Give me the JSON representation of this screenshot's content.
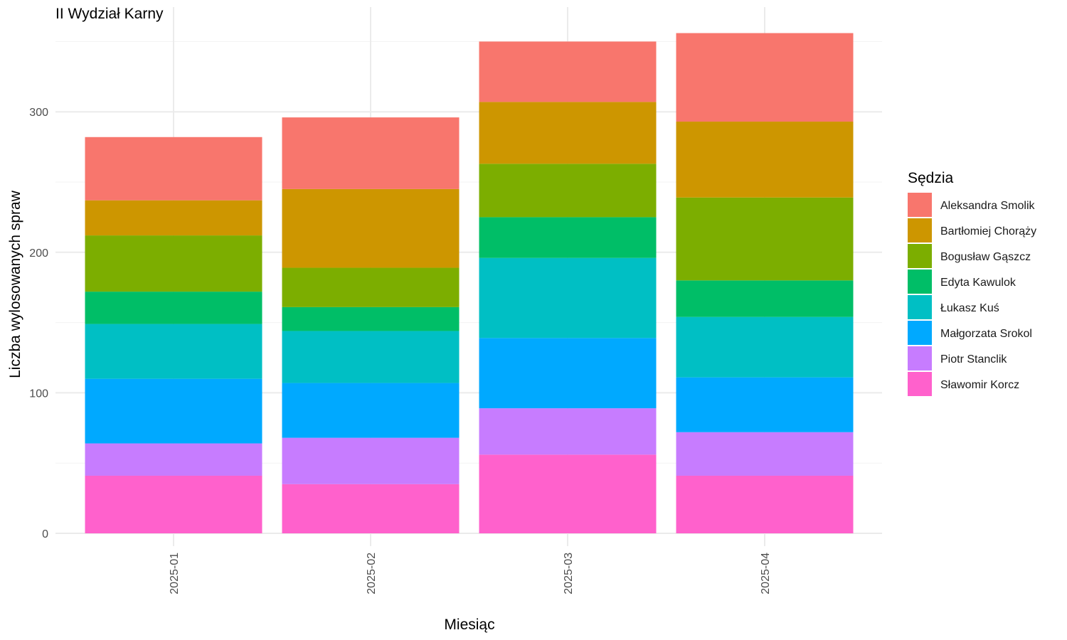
{
  "chart_data": {
    "type": "bar",
    "stacked": true,
    "title": "II Wydział Karny",
    "xlabel": "Miesiąc",
    "ylabel": "Liczba wylosowanych spraw",
    "categories": [
      "2025-01",
      "2025-02",
      "2025-03",
      "2025-04"
    ],
    "yticks": [
      0,
      100,
      200,
      300
    ],
    "ylim": [
      0,
      370
    ],
    "grid": true,
    "legend": {
      "title": "Sędzia",
      "position": "right"
    },
    "series": [
      {
        "name": "Aleksandra Smolik",
        "color": "#F8766D",
        "values": [
          45,
          51,
          43,
          63
        ]
      },
      {
        "name": "Bartłomiej Chorąży",
        "color": "#CD9600",
        "values": [
          25,
          56,
          44,
          54
        ]
      },
      {
        "name": "Bogusław Gąszcz",
        "color": "#7CAE00",
        "values": [
          40,
          28,
          38,
          59
        ]
      },
      {
        "name": "Edyta Kawulok",
        "color": "#00BE67",
        "values": [
          23,
          17,
          29,
          26
        ]
      },
      {
        "name": "Łukasz Kuś",
        "color": "#00BFC4",
        "values": [
          39,
          37,
          57,
          43
        ]
      },
      {
        "name": "Małgorzata Srokol",
        "color": "#00A9FF",
        "values": [
          46,
          39,
          50,
          39
        ]
      },
      {
        "name": "Piotr Stanclik",
        "color": "#C77CFF",
        "values": [
          23,
          33,
          33,
          31
        ]
      },
      {
        "name": "Sławomir Korcz",
        "color": "#FF61CC",
        "values": [
          41,
          35,
          56,
          41
        ]
      }
    ]
  }
}
